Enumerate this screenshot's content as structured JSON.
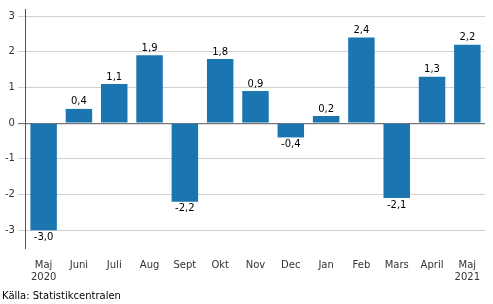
{
  "chart_data": {
    "type": "bar",
    "categories": [
      "Maj\n2020",
      "Juni",
      "Juli",
      "Aug",
      "Sept",
      "Okt",
      "Nov",
      "Dec",
      "Jan",
      "Feb",
      "Mars",
      "April",
      "Maj\n2021"
    ],
    "values": [
      -3.0,
      0.4,
      1.1,
      1.9,
      -2.2,
      1.8,
      0.9,
      -0.4,
      0.2,
      2.4,
      -2.1,
      1.3,
      2.2
    ],
    "value_labels": [
      "-3,0",
      "0,4",
      "1,1",
      "1,9",
      "-2,2",
      "1,8",
      "0,9",
      "-0,4",
      "0,2",
      "2,4",
      "-2,1",
      "1,3",
      "2,2"
    ],
    "data_labels": true,
    "color": "#1a75b0",
    "ylim": [
      -3.5,
      3.2
    ],
    "yticks": [
      -3,
      -2,
      -1,
      0,
      1,
      2,
      3
    ],
    "grid": true,
    "annotations": [
      "Källa: Statistikcentralen"
    ]
  }
}
